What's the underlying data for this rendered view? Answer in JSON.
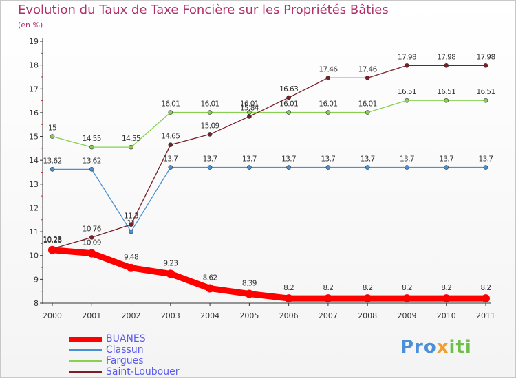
{
  "header": {
    "title": "Evolution du Taux de Taxe Foncière sur les Propriétés Bâties",
    "unit": "(en %)"
  },
  "logo": {
    "part1": "Pro",
    "part2": "x",
    "part3": "iti"
  },
  "chart_data": {
    "type": "line",
    "title": "Evolution du Taux de Taxe Foncière sur les Propriétés Bâties",
    "ylabel": "(en %)",
    "xlabel": "",
    "ylim": [
      8,
      19
    ],
    "yticks": [
      8,
      9,
      10,
      11,
      12,
      13,
      14,
      15,
      16,
      17,
      18,
      19
    ],
    "categories": [
      "2000",
      "2001",
      "2002",
      "2003",
      "2004",
      "2005",
      "2006",
      "2007",
      "2008",
      "2009",
      "2010",
      "2011"
    ],
    "legend_position": "bottom-left",
    "series": [
      {
        "name": "BUANES",
        "color": "#ff0000",
        "values": [
          10.23,
          10.09,
          9.48,
          9.23,
          8.62,
          8.39,
          8.2,
          8.2,
          8.2,
          8.2,
          8.2,
          8.2
        ],
        "labels": [
          "10.23",
          "10.09",
          "9.48",
          "9.23",
          "8.62",
          "8.39",
          "8.2",
          "8.2",
          "8.2",
          "8.2",
          "8.2",
          "8.2"
        ]
      },
      {
        "name": "Classun",
        "color": "#4a8fcf",
        "values": [
          13.62,
          13.62,
          11,
          13.7,
          13.7,
          13.7,
          13.7,
          13.7,
          13.7,
          13.7,
          13.7,
          13.7
        ],
        "labels": [
          "13.62",
          "13.62",
          "11",
          "13.7",
          "13.7",
          "13.7",
          "13.7",
          "13.7",
          "13.7",
          "13.7",
          "13.7",
          "13.7"
        ]
      },
      {
        "name": "Fargues",
        "color": "#88d050",
        "values": [
          15,
          14.55,
          14.55,
          16.01,
          16.01,
          16.01,
          16.01,
          16.01,
          16.01,
          16.51,
          16.51,
          16.51
        ],
        "labels": [
          "15",
          "14.55",
          "14.55",
          "16.01",
          "16.01",
          "16.01",
          "16.01",
          "16.01",
          "16.01",
          "16.51",
          "16.51",
          "16.51"
        ]
      },
      {
        "name": "Saint-Loubouer",
        "color": "#7a1f2a",
        "values": [
          10.28,
          10.76,
          11.3,
          14.65,
          15.09,
          15.84,
          16.63,
          17.46,
          17.46,
          17.98,
          17.98,
          17.98
        ],
        "labels": [
          "10.28",
          "10.76",
          "11.3",
          "14.65",
          "15.09",
          "15.84",
          "16.63",
          "17.46",
          "17.46",
          "17.98",
          "17.98",
          "17.98"
        ]
      }
    ]
  }
}
